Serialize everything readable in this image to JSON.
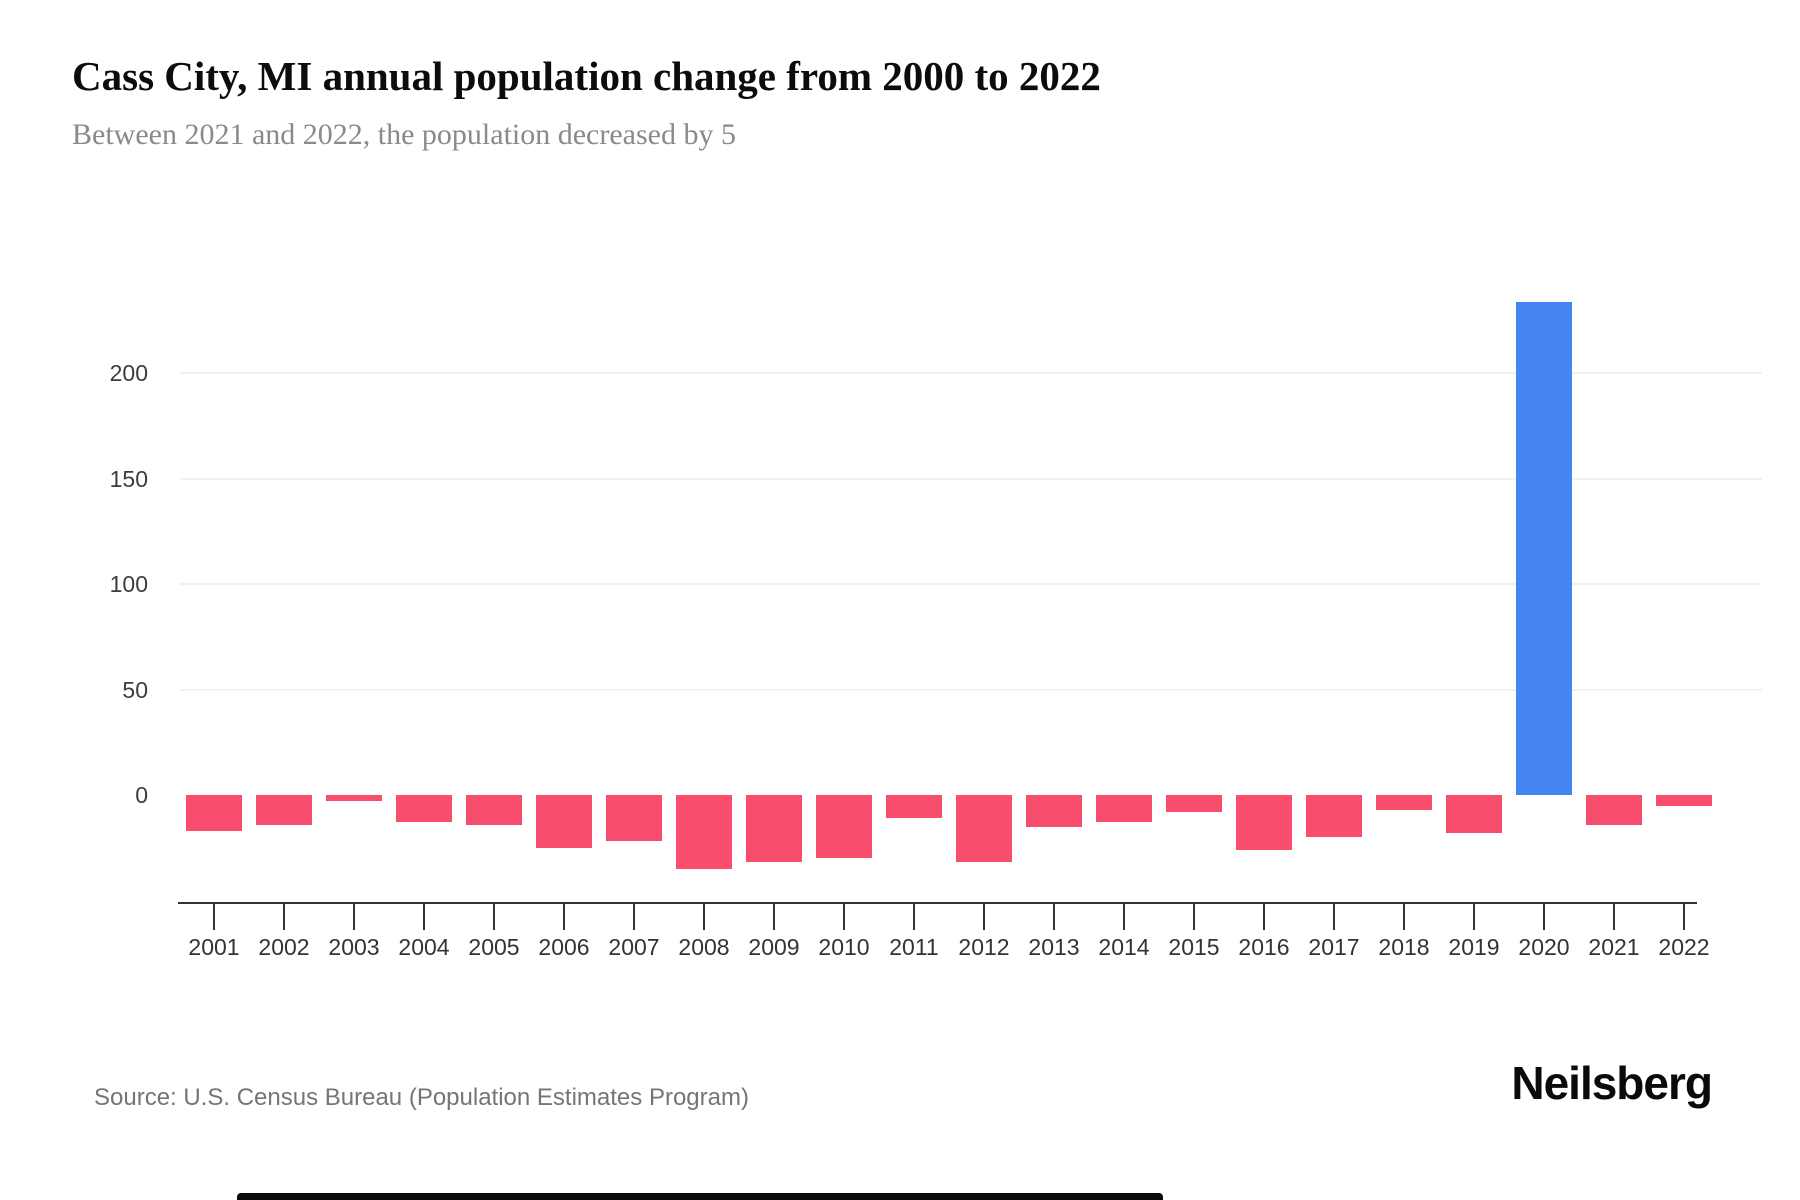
{
  "header": {
    "title": "Cass City, MI annual population change from 2000 to 2022",
    "subtitle": "Between 2021 and 2022, the population decreased by 5"
  },
  "footer": {
    "source": "Source: U.S. Census Bureau (Population Estimates Program)",
    "brand": "Neilsberg"
  },
  "colors": {
    "negative_bar": "#f94d6e",
    "positive_bar": "#4585f3",
    "gridline": "#f2f2f2",
    "axis_line": "#333333",
    "axis_tick_label": "#3d3d3d",
    "subtitle_text": "#8a8a8a",
    "source_text": "#757575"
  },
  "chart_data": {
    "type": "bar",
    "title": "Cass City, MI annual population change from 2000 to 2022",
    "subtitle": "Between 2021 and 2022, the population decreased by 5",
    "xlabel": "",
    "ylabel": "",
    "categories": [
      "2001",
      "2002",
      "2003",
      "2004",
      "2005",
      "2006",
      "2007",
      "2008",
      "2009",
      "2010",
      "2011",
      "2012",
      "2013",
      "2014",
      "2015",
      "2016",
      "2017",
      "2018",
      "2019",
      "2020",
      "2021",
      "2022"
    ],
    "values": [
      -17,
      -14,
      -3,
      -13,
      -14,
      -25,
      -22,
      -35,
      -32,
      -30,
      -11,
      -32,
      -15,
      -13,
      -8,
      -26,
      -20,
      -7,
      -18,
      234,
      -14,
      -5
    ],
    "series_name": "Annual population change",
    "y_ticks": [
      0,
      50,
      100,
      150,
      200
    ],
    "y_tick_labels": [
      "0",
      "50",
      "100",
      "150",
      "200"
    ],
    "ylim": [
      -40,
      250
    ],
    "grid": "horizontal",
    "legend": "none",
    "bar_colors": {
      "negative": "#f94d6e",
      "positive": "#4585f3"
    }
  }
}
